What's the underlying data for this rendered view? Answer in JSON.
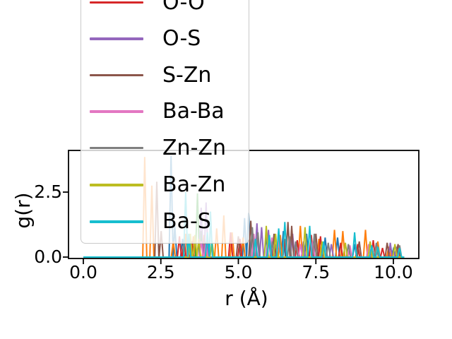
{
  "figure_title": "",
  "chart_data": {
    "type": "line",
    "title": "",
    "xlabel": "r (Å)",
    "ylabel": "g(r)",
    "xticks": [
      "0.0",
      "2.5",
      "5.0",
      "7.5",
      "10.0"
    ],
    "xtick_values": [
      0.0,
      2.5,
      5.0,
      7.5,
      10.0
    ],
    "yticks": [
      "0.0",
      "2.5"
    ],
    "ytick_values": [
      0.0,
      2.5
    ],
    "xlim": [
      -0.48,
      10.82
    ],
    "ylim": [
      -0.05,
      4.1
    ],
    "grid": false,
    "line_style": "narrow spikes (radial distribution function peaks), baseline at g(r)=0 from r=0 to r=10.35",
    "peak_halfwidth": 0.065,
    "legend": {
      "position": "upper-left, box extends above the visible canvas (topmost entries cut off)",
      "background": "rgba(255,255,255,0.8)",
      "border_color": "#c9c9c9",
      "entries": [
        {
          "label": "O-O",
          "color": "#d62728"
        },
        {
          "label": "O-S",
          "color": "#9467bd"
        },
        {
          "label": "S-Zn",
          "color": "#8c564b"
        },
        {
          "label": "Ba-Ba",
          "color": "#e377c2"
        },
        {
          "label": "Zn-Zn",
          "color": "#7f7f7f"
        },
        {
          "label": "Ba-Zn",
          "color": "#bcbd22"
        },
        {
          "label": "Ba-S",
          "color": "#17becf"
        }
      ]
    },
    "series": [
      {
        "label": "",
        "legend_visible": false,
        "color": "#1f77b4",
        "peaks": [
          [
            2.83,
            3.9
          ],
          [
            2.95,
            1.2
          ],
          [
            3.2,
            0.7
          ],
          [
            5.2,
            1.5
          ],
          [
            5.33,
            1.7
          ],
          [
            5.9,
            0.8
          ],
          [
            6.45,
            1.0
          ],
          [
            7.2,
            0.9
          ],
          [
            7.8,
            0.75
          ],
          [
            8.2,
            0.75
          ],
          [
            8.75,
            0.5
          ],
          [
            9.3,
            0.45
          ],
          [
            10.0,
            0.3
          ]
        ]
      },
      {
        "label": "",
        "legend_visible": false,
        "color": "#ff7f0e",
        "peaks": [
          [
            1.98,
            3.85
          ],
          [
            2.21,
            2.75
          ],
          [
            2.9,
            0.6
          ],
          [
            3.3,
            0.9
          ],
          [
            3.55,
            0.8
          ],
          [
            3.9,
            0.85
          ],
          [
            4.3,
            1.1
          ],
          [
            4.53,
            1.6
          ],
          [
            4.8,
            0.95
          ],
          [
            5.15,
            0.75
          ],
          [
            6.35,
            0.85
          ],
          [
            7.0,
            1.2
          ],
          [
            7.6,
            0.7
          ],
          [
            8.1,
            1.05
          ],
          [
            8.37,
            1.0
          ],
          [
            9.1,
            1.05
          ],
          [
            9.5,
            0.6
          ],
          [
            9.85,
            0.4
          ]
        ]
      },
      {
        "label": "",
        "legend_visible": false,
        "color": "#2ca02c",
        "peaks": [
          [
            3.68,
            2.45
          ],
          [
            3.8,
            1.0
          ],
          [
            3.95,
            0.55
          ]
        ]
      },
      {
        "label": "O-O",
        "legend_visible": true,
        "color": "#d62728",
        "peaks": [
          [
            3.1,
            0.8
          ],
          [
            3.25,
            0.65
          ],
          [
            3.5,
            0.6
          ],
          [
            4.75,
            0.95
          ],
          [
            5.05,
            0.7
          ],
          [
            5.5,
            0.65
          ],
          [
            6.15,
            0.8
          ],
          [
            6.5,
            0.7
          ],
          [
            6.9,
            0.65
          ],
          [
            7.35,
            0.85
          ],
          [
            7.65,
            0.8
          ],
          [
            8.3,
            0.55
          ],
          [
            8.85,
            0.5
          ],
          [
            9.35,
            0.65
          ],
          [
            9.65,
            0.35
          ],
          [
            9.9,
            0.45
          ]
        ]
      },
      {
        "label": "O-S",
        "legend_visible": true,
        "color": "#9467bd",
        "peaks": [
          [
            3.45,
            0.6
          ],
          [
            3.8,
            1.9
          ],
          [
            3.96,
            2.1
          ],
          [
            5.6,
            1.3
          ],
          [
            5.75,
            1.15
          ],
          [
            5.97,
            1.05
          ],
          [
            6.75,
            0.9
          ],
          [
            7.1,
            0.6
          ],
          [
            8.0,
            0.5
          ],
          [
            9.9,
            0.55
          ],
          [
            10.1,
            0.4
          ]
        ]
      },
      {
        "label": "S-Zn",
        "legend_visible": true,
        "color": "#8c564b",
        "peaks": [
          [
            2.37,
            2.9
          ],
          [
            2.51,
            1.0
          ],
          [
            5.0,
            0.8
          ],
          [
            5.4,
            1.4
          ],
          [
            6.15,
            0.9
          ],
          [
            6.6,
            1.35
          ],
          [
            6.72,
            1.2
          ],
          [
            7.5,
            0.9
          ],
          [
            8.9,
            0.6
          ],
          [
            9.8,
            0.55
          ],
          [
            10.15,
            0.5
          ]
        ]
      },
      {
        "label": "Ba-Ba",
        "legend_visible": true,
        "color": "#e377c2",
        "peaks": [
          [
            3.8,
            0.6
          ],
          [
            3.95,
            0.5
          ],
          [
            5.5,
            0.9
          ],
          [
            6.08,
            0.75
          ],
          [
            6.3,
            0.7
          ],
          [
            7.0,
            0.5
          ],
          [
            7.4,
            0.6
          ],
          [
            8.6,
            0.45
          ],
          [
            9.2,
            0.5
          ]
        ]
      },
      {
        "label": "Zn-Zn",
        "legend_visible": true,
        "color": "#7f7f7f",
        "peaks": [
          [
            5.45,
            1.15
          ],
          [
            5.63,
            0.95
          ],
          [
            6.1,
            0.6
          ],
          [
            6.65,
            0.8
          ],
          [
            6.85,
            0.6
          ],
          [
            7.45,
            0.9
          ],
          [
            7.9,
            0.55
          ],
          [
            8.55,
            0.5
          ],
          [
            9.45,
            0.55
          ],
          [
            10.2,
            0.45
          ]
        ]
      },
      {
        "label": "Ba-Zn",
        "legend_visible": true,
        "color": "#bcbd22",
        "peaks": [
          [
            3.45,
            0.9
          ],
          [
            3.6,
            0.85
          ],
          [
            3.72,
            0.7
          ],
          [
            4.15,
            0.6
          ],
          [
            5.9,
            1.2
          ],
          [
            6.2,
            0.9
          ],
          [
            7.15,
            1.15
          ],
          [
            7.7,
            0.6
          ],
          [
            8.45,
            0.55
          ],
          [
            9.25,
            0.6
          ],
          [
            10.05,
            0.5
          ]
        ]
      },
      {
        "label": "Ba-S",
        "legend_visible": true,
        "color": "#17becf",
        "peaks": [
          [
            3.3,
            2.5
          ],
          [
            3.4,
            0.9
          ],
          [
            4.0,
            0.95
          ],
          [
            4.1,
            1.75
          ],
          [
            5.55,
            0.7
          ],
          [
            6.0,
            0.85
          ],
          [
            6.3,
            1.1
          ],
          [
            6.5,
            1.35
          ],
          [
            7.3,
            1.2
          ],
          [
            7.75,
            0.6
          ],
          [
            8.75,
            0.95
          ],
          [
            9.3,
            0.45
          ],
          [
            9.5,
            0.4
          ],
          [
            10.2,
            0.35
          ]
        ]
      }
    ]
  }
}
